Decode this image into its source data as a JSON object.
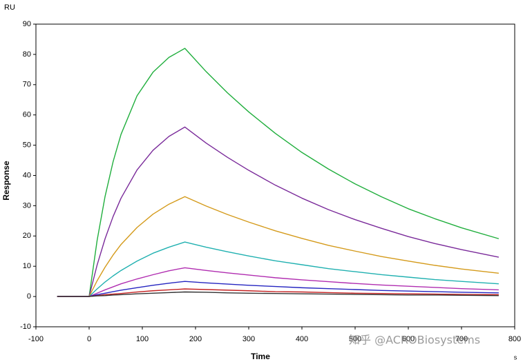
{
  "chart_data": {
    "type": "line",
    "y_unit": "RU",
    "ylabel": "Response",
    "xlabel": "Time",
    "x_unit": "s",
    "watermark": "知乎 @ACROBiosystems",
    "xlim": [
      -100,
      800
    ],
    "ylim": [
      -10,
      90
    ],
    "xticks": [
      -100,
      0,
      100,
      200,
      300,
      400,
      500,
      600,
      700,
      800
    ],
    "yticks": [
      -10,
      0,
      10,
      20,
      30,
      40,
      50,
      60,
      70,
      80,
      90
    ],
    "x": [
      -60,
      0,
      15,
      30,
      45,
      60,
      90,
      120,
      150,
      180,
      220,
      260,
      300,
      350,
      400,
      450,
      500,
      550,
      600,
      650,
      700,
      770
    ],
    "series": [
      {
        "color": "#1fae3c",
        "values": [
          0,
          0,
          18.5,
          33.1,
          44.5,
          53.6,
          66.3,
          74.1,
          79.0,
          82,
          74.3,
          67.3,
          61.0,
          53.9,
          47.6,
          42.1,
          37.2,
          32.9,
          29.0,
          25.7,
          22.7,
          19.1
        ]
      },
      {
        "color": "#7a2a9a",
        "values": [
          0,
          0,
          10.4,
          19.1,
          26.4,
          32.5,
          41.8,
          48.3,
          52.9,
          56,
          50.7,
          46.0,
          41.7,
          36.8,
          32.5,
          28.7,
          25.4,
          22.5,
          19.8,
          17.5,
          15.5,
          13.0
        ]
      },
      {
        "color": "#d49a1a",
        "values": [
          0,
          0,
          5.2,
          9.7,
          13.7,
          17.2,
          22.8,
          27.2,
          30.5,
          33,
          29.9,
          27.1,
          24.6,
          21.7,
          19.2,
          16.9,
          15.0,
          13.2,
          11.7,
          10.3,
          9.1,
          7.7
        ]
      },
      {
        "color": "#1fb0b0",
        "values": [
          0,
          0,
          2.5,
          4.8,
          6.8,
          8.6,
          11.7,
          14.3,
          16.3,
          18,
          16.3,
          14.8,
          13.4,
          11.8,
          10.5,
          9.2,
          8.2,
          7.2,
          6.4,
          5.6,
          5.0,
          4.2
        ]
      },
      {
        "color": "#b02cb0",
        "values": [
          0,
          0,
          1.1,
          2.2,
          3.2,
          4.2,
          5.8,
          7.2,
          8.5,
          9.5,
          8.6,
          7.8,
          7.1,
          6.2,
          5.5,
          4.9,
          4.3,
          3.8,
          3.4,
          3.0,
          2.6,
          2.2
        ]
      },
      {
        "color": "#2424c0",
        "values": [
          0,
          0,
          0.6,
          1.1,
          1.6,
          2.1,
          2.9,
          3.7,
          4.4,
          5,
          4.5,
          4.1,
          3.7,
          3.3,
          2.9,
          2.6,
          2.3,
          2.0,
          1.8,
          1.6,
          1.4,
          1.2
        ]
      },
      {
        "color": "#c42020",
        "values": [
          0,
          0,
          0.3,
          0.6,
          0.8,
          1.0,
          1.5,
          1.9,
          2.2,
          2.5,
          2.3,
          2.1,
          1.9,
          1.6,
          1.5,
          1.3,
          1.1,
          1.0,
          0.9,
          0.8,
          0.7,
          0.6
        ]
      },
      {
        "color": "#303030",
        "values": [
          0,
          0,
          0.2,
          0.3,
          0.5,
          0.6,
          0.9,
          1.1,
          1.3,
          1.5,
          1.4,
          1.2,
          1.1,
          1.0,
          0.9,
          0.8,
          0.7,
          0.6,
          0.5,
          0.5,
          0.4,
          0.3
        ]
      }
    ]
  }
}
